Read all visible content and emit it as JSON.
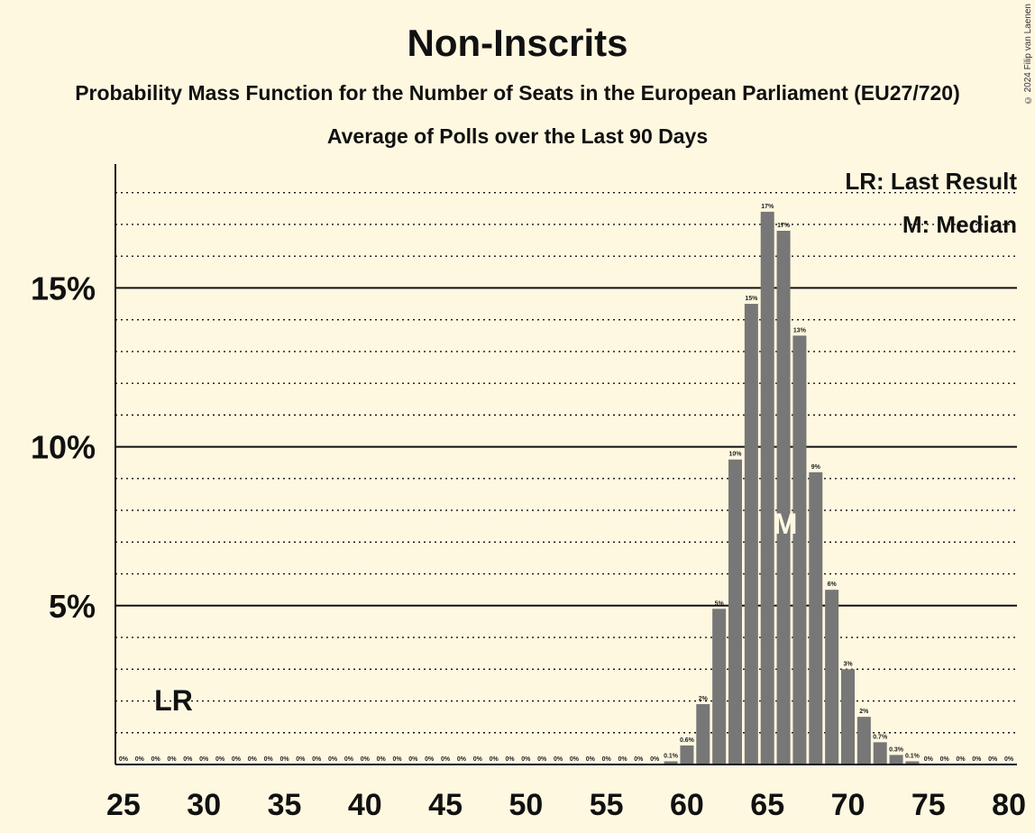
{
  "header": {
    "title": "Non-Inscrits",
    "subtitle": "Probability Mass Function for the Number of Seats in the European Parliament (EU27/720)",
    "subtitle2": "Average of Polls over the Last 90 Days",
    "copyright": "© 2024 Filip van Laenen"
  },
  "legend": {
    "lr": "LR: Last Result",
    "median": "M: Median"
  },
  "markers": {
    "lr_label": "LR",
    "lr_seat": 28,
    "median_label": "M",
    "median_seat": 66
  },
  "colors": {
    "background": "#FFF8E1",
    "bar": "#777777",
    "axis": "#111111"
  },
  "chart_data": {
    "type": "bar",
    "x": [
      25,
      26,
      27,
      28,
      29,
      30,
      31,
      32,
      33,
      34,
      35,
      36,
      37,
      38,
      39,
      40,
      41,
      42,
      43,
      44,
      45,
      46,
      47,
      48,
      49,
      50,
      51,
      52,
      53,
      54,
      55,
      56,
      57,
      58,
      59,
      60,
      61,
      62,
      63,
      64,
      65,
      66,
      67,
      68,
      69,
      70,
      71,
      72,
      73,
      74,
      75,
      76,
      77,
      78,
      79,
      80
    ],
    "values": [
      0,
      0,
      0,
      0,
      0,
      0,
      0,
      0,
      0,
      0,
      0,
      0,
      0,
      0,
      0,
      0,
      0,
      0,
      0,
      0,
      0,
      0,
      0,
      0,
      0,
      0,
      0,
      0,
      0,
      0,
      0,
      0,
      0,
      0,
      0.1,
      0.6,
      1.9,
      4.9,
      9.6,
      14.5,
      17.4,
      16.8,
      13.5,
      9.2,
      5.5,
      3.0,
      1.5,
      0.7,
      0.3,
      0.1,
      0,
      0,
      0,
      0,
      0,
      0
    ],
    "labels": [
      "0%",
      "0%",
      "0%",
      "0%",
      "0%",
      "0%",
      "0%",
      "0%",
      "0%",
      "0%",
      "0%",
      "0%",
      "0%",
      "0%",
      "0%",
      "0%",
      "0%",
      "0%",
      "0%",
      "0%",
      "0%",
      "0%",
      "0%",
      "0%",
      "0%",
      "0%",
      "0%",
      "0%",
      "0%",
      "0%",
      "0%",
      "0%",
      "0%",
      "0%",
      "0.1%",
      "0.6%",
      "2%",
      "5%",
      "10%",
      "15%",
      "17%",
      "17%",
      "13%",
      "9%",
      "6%",
      "3%",
      "2%",
      "0.7%",
      "0.3%",
      "0.1%",
      "0%",
      "0%",
      "0%",
      "0%",
      "0%",
      "0%"
    ],
    "x_ticks": [
      25,
      30,
      35,
      40,
      45,
      50,
      55,
      60,
      65,
      70,
      75,
      80
    ],
    "y_ticks": [
      5,
      10,
      15
    ],
    "y_tick_labels": [
      "5%",
      "10%",
      "15%"
    ],
    "ylim": [
      0,
      18.9
    ],
    "xlabel": "",
    "ylabel": ""
  }
}
